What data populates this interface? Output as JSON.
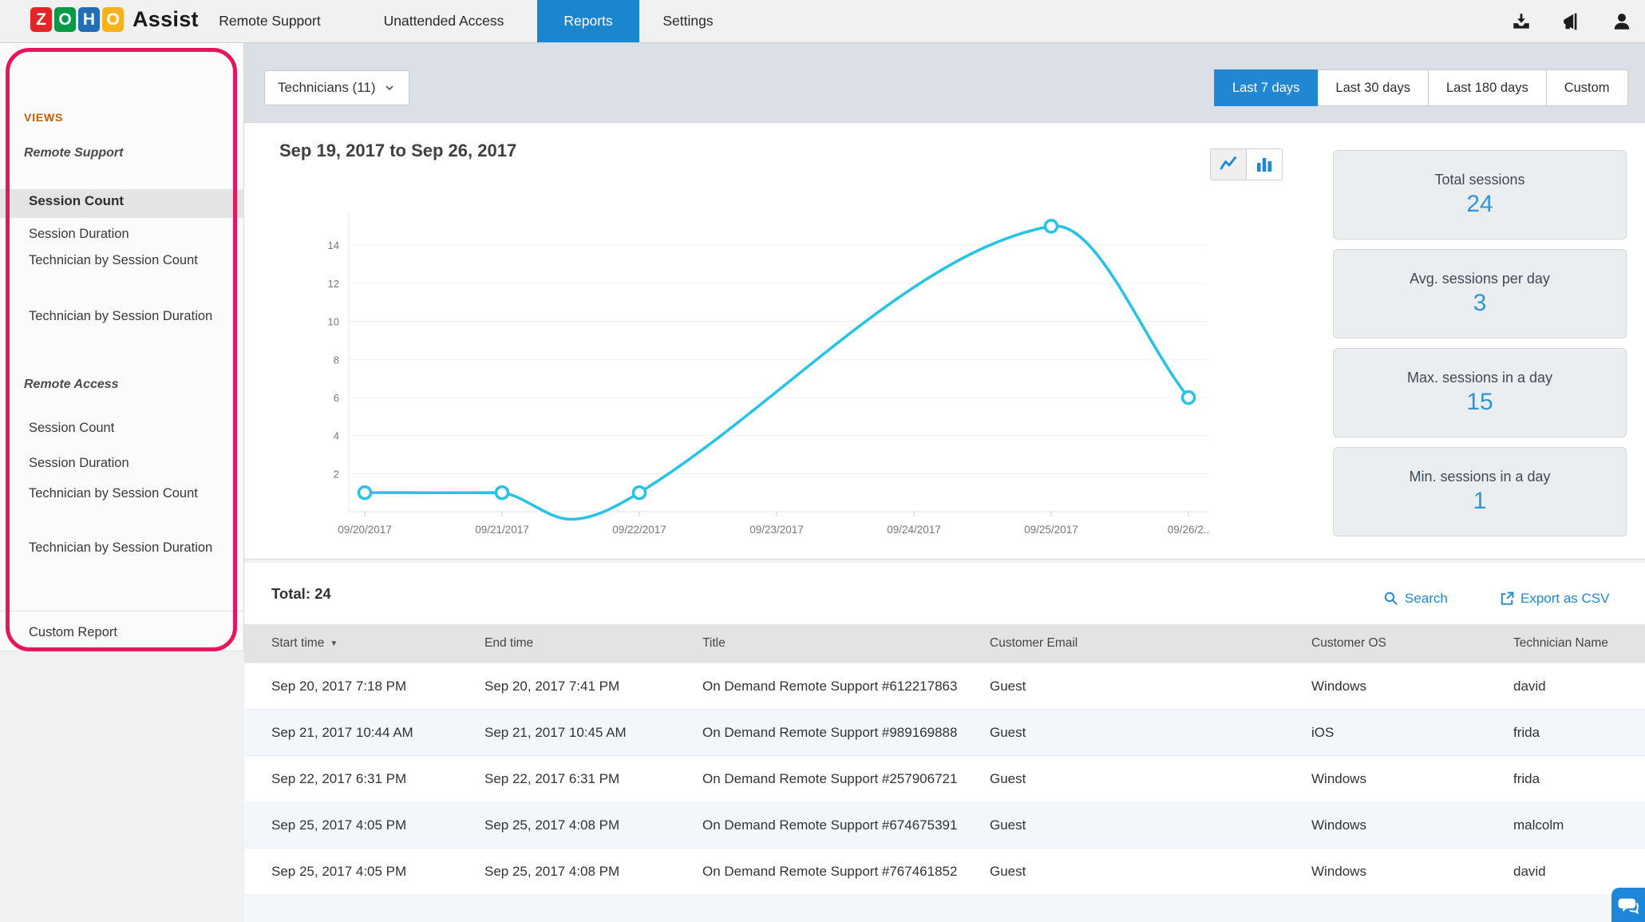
{
  "nav": {
    "brand_tiles": [
      {
        "letter": "Z",
        "color": "#e42527"
      },
      {
        "letter": "O",
        "color": "#089949"
      },
      {
        "letter": "H",
        "color": "#226db4"
      },
      {
        "letter": "O",
        "color": "#f9b21d"
      }
    ],
    "brand_name": "Assist",
    "items": [
      "Remote Support",
      "Unattended Access",
      "Reports",
      "Settings"
    ],
    "active_item": "Reports",
    "icons": [
      "download-icon",
      "announcement-icon",
      "profile-icon"
    ]
  },
  "sidebar": {
    "views_label": "VIEWS",
    "sections": [
      {
        "title": "Remote Support",
        "items": [
          "Session Count",
          "Session Duration",
          "Technician by Session Count",
          "Technician by Session Duration"
        ]
      },
      {
        "title": "Remote Access",
        "items": [
          "Session Count",
          "Session Duration",
          "Technician by Session Count",
          "Technician by Session Duration"
        ]
      }
    ],
    "custom_report": "Custom Report",
    "selected_item": "Session Count"
  },
  "toolbar": {
    "technicians_label": "Technicians (11)",
    "ranges": [
      "Last 7 days",
      "Last 30 days",
      "Last 180 days",
      "Custom"
    ],
    "active_range": "Last 7 days"
  },
  "chart_data": {
    "type": "line",
    "title": "Sep 19, 2017 to Sep 26, 2017",
    "x_labels": [
      "09/20/2017",
      "09/21/2017",
      "09/22/2017",
      "09/23/2017",
      "09/24/2017",
      "09/25/2017",
      "09/26/2.."
    ],
    "values": [
      1,
      1,
      1,
      null,
      null,
      15,
      6
    ],
    "spline_dip": {
      "i": 1.5,
      "v": -0.4
    },
    "y_ticks": [
      2,
      4,
      6,
      8,
      10,
      12,
      14
    ],
    "ylim": [
      0,
      16
    ],
    "grid": true,
    "legend": "none",
    "line_color": "#25c3e8",
    "marker": "open-circle"
  },
  "stats": {
    "cards": [
      {
        "label": "Total sessions",
        "value": "24"
      },
      {
        "label": "Avg. sessions per day",
        "value": "3"
      },
      {
        "label": "Max. sessions in a day",
        "value": "15"
      },
      {
        "label": "Min. sessions in a day",
        "value": "1"
      }
    ]
  },
  "table": {
    "total_label": "Total: 24",
    "search_label": "Search",
    "export_label": "Export as CSV",
    "columns": [
      "Start time",
      "End time",
      "Title",
      "Customer Email",
      "Customer OS",
      "Technician Name"
    ],
    "sorted_column": "Start time",
    "sort_direction": "desc",
    "rows": [
      [
        "Sep 20, 2017 7:18 PM",
        "Sep 20, 2017 7:41 PM",
        "On Demand Remote Support #612217863",
        "Guest",
        "Windows",
        "david"
      ],
      [
        "Sep 21, 2017 10:44 AM",
        "Sep 21, 2017 10:45 AM",
        "On Demand Remote Support #989169888",
        "Guest",
        "iOS",
        "frida"
      ],
      [
        "Sep 22, 2017 6:31 PM",
        "Sep 22, 2017 6:31 PM",
        "On Demand Remote Support #257906721",
        "Guest",
        "Windows",
        "frida"
      ],
      [
        "Sep 25, 2017 4:05 PM",
        "Sep 25, 2017 4:08 PM",
        "On Demand Remote Support #674675391",
        "Guest",
        "Windows",
        "malcolm"
      ],
      [
        "Sep 25, 2017 4:05 PM",
        "Sep 25, 2017 4:08 PM",
        "On Demand Remote Support #767461852",
        "Guest",
        "Windows",
        "david"
      ]
    ]
  },
  "colors": {
    "accent_blue": "#1f87d7",
    "active_tab": "#1a86d0",
    "chart_line": "#25c3e8",
    "stat_value": "#2d95d9",
    "annotation_pink": "#e8155e",
    "views_orange": "#cb5a00"
  },
  "chat_button": {
    "icon": "chat-bubbles-icon"
  }
}
